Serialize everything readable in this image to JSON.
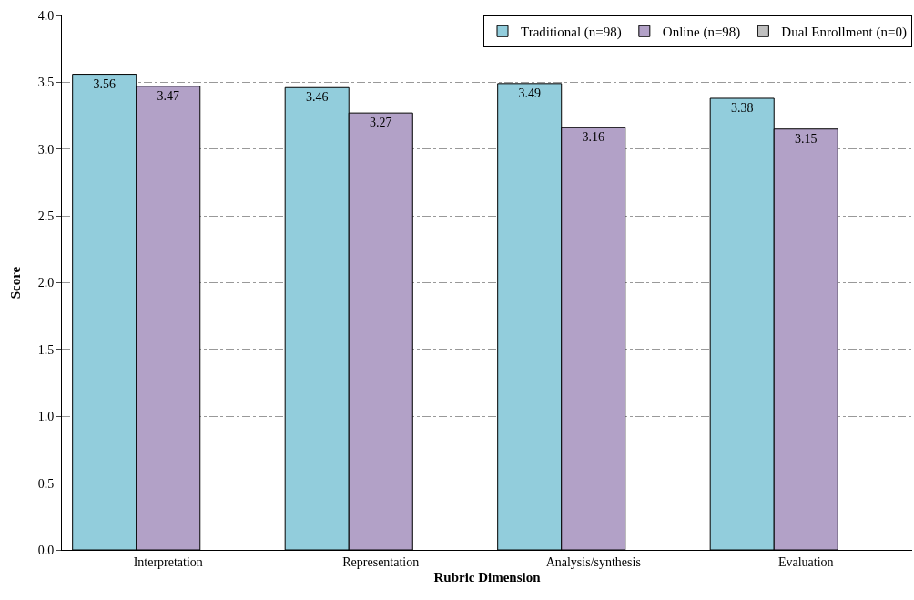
{
  "chart_data": {
    "type": "bar",
    "xlabel": "Rubric Dimension",
    "ylabel": "Score",
    "categories": [
      "Interpretation",
      "Representation",
      "Analysis/synthesis",
      "Evaluation"
    ],
    "series": [
      {
        "name": "Traditional (n=98)",
        "color": "#92cddc",
        "values": [
          3.56,
          3.46,
          3.49,
          3.38
        ]
      },
      {
        "name": "Online (n=98)",
        "color": "#b2a1c7",
        "values": [
          3.47,
          3.27,
          3.16,
          3.15
        ]
      },
      {
        "name": "Dual Enrollment (n=0)",
        "color": "#bfbfbf",
        "values": [
          null,
          null,
          null,
          null
        ]
      }
    ],
    "ylim": [
      0,
      4
    ],
    "yticks": [
      {
        "value": 0,
        "label": "0.0"
      },
      {
        "value": 0.5,
        "label": "0.5"
      },
      {
        "value": 1,
        "label": "1.0"
      },
      {
        "value": 1.5,
        "label": "1.5"
      },
      {
        "value": 2,
        "label": "2.0"
      },
      {
        "value": 2.5,
        "label": "2.5"
      },
      {
        "value": 3,
        "label": "3.0"
      },
      {
        "value": 3.5,
        "label": "3.5"
      },
      {
        "value": 4,
        "label": "4.0"
      }
    ],
    "grid": "y",
    "legend": "top right",
    "data_labels": true
  }
}
